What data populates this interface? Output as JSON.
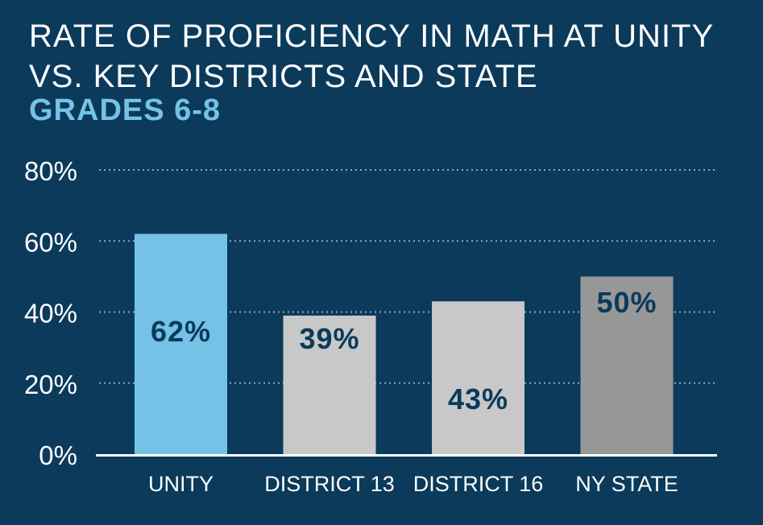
{
  "chart_data": {
    "type": "bar",
    "title": "RATE OF PROFICIENCY IN MATH AT UNITY VS. KEY DISTRICTS AND STATE",
    "subtitle": "GRADES 6-8",
    "categories": [
      "UNITY",
      "DISTRICT 13",
      "DISTRICT 16",
      "NY STATE"
    ],
    "values": [
      62,
      39,
      43,
      50
    ],
    "data_labels": [
      "62%",
      "39%",
      "43%",
      "50%"
    ],
    "bar_colors": [
      "#74c3e7",
      "#c8c8c8",
      "#c8c8c8",
      "#979797"
    ],
    "yticks": [
      {
        "value": 0,
        "label": "0%"
      },
      {
        "value": 20,
        "label": "20%"
      },
      {
        "value": 40,
        "label": "40%"
      },
      {
        "value": 60,
        "label": "60%"
      },
      {
        "value": 80,
        "label": "80%"
      }
    ],
    "ylim": [
      0,
      80
    ],
    "xlabel": "",
    "ylabel": "",
    "grid": true,
    "legend": "none"
  },
  "colors": {
    "background": "#0b3a5b",
    "title": "#ffffff",
    "subtitle": "#74c3e7",
    "value_label": "#0b3a5b",
    "axis": "#ffffff",
    "grid": "#8fa8bc"
  }
}
